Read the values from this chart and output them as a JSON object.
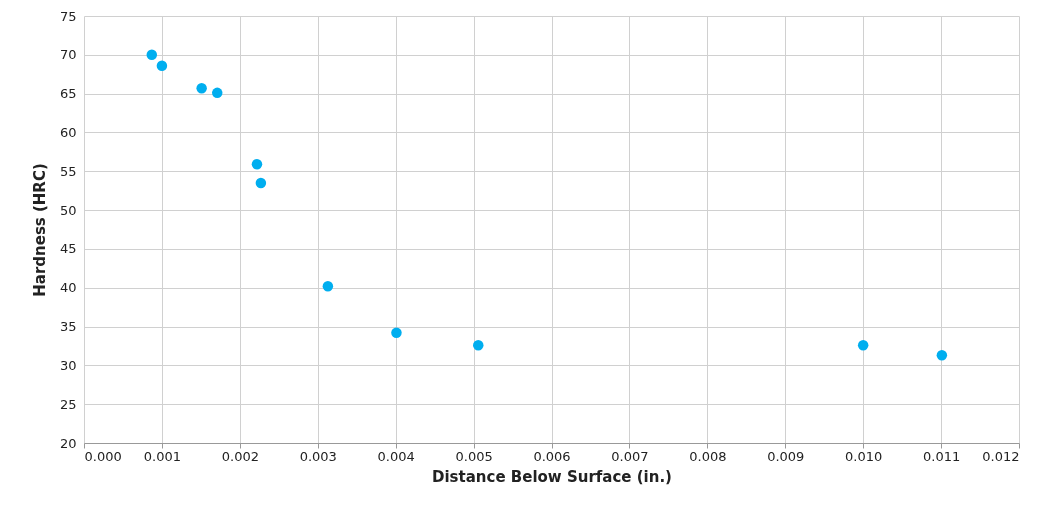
{
  "chart_data": {
    "type": "scatter",
    "xlabel": "Distance Below Surface (in.)",
    "ylabel": "Hardness (HRC)",
    "x": [
      0.00087,
      0.001,
      0.00151,
      0.00171,
      0.00222,
      0.00227,
      0.00313,
      0.00401,
      0.00506,
      0.01,
      0.01101
    ],
    "series": [
      {
        "color": "#00aeef",
        "values": [
          70.0,
          68.6,
          65.7,
          65.1,
          55.9,
          53.5,
          40.2,
          34.2,
          32.6,
          32.6,
          31.3
        ]
      }
    ],
    "xlim": [
      0,
      0.012
    ],
    "xticks": [
      {
        "value": 0,
        "label": "0.000"
      },
      {
        "value": 0.001,
        "label": "0.001"
      },
      {
        "value": 0.002,
        "label": "0.002"
      },
      {
        "value": 0.003,
        "label": "0.003"
      },
      {
        "value": 0.004,
        "label": "0.004"
      },
      {
        "value": 0.005,
        "label": "0.005"
      },
      {
        "value": 0.006,
        "label": "0.006"
      },
      {
        "value": 0.007,
        "label": "0.007"
      },
      {
        "value": 0.008,
        "label": "0.008"
      },
      {
        "value": 0.009,
        "label": "0.009"
      },
      {
        "value": 0.01,
        "label": "0.010"
      },
      {
        "value": 0.011,
        "label": "0.011"
      },
      {
        "value": 0.012,
        "label": "0.012"
      }
    ],
    "ylim": [
      20,
      75
    ],
    "yticks": [
      20,
      25,
      30,
      35,
      40,
      45,
      50,
      55,
      60,
      65,
      70,
      75
    ],
    "grid": true,
    "marker": "circle"
  }
}
